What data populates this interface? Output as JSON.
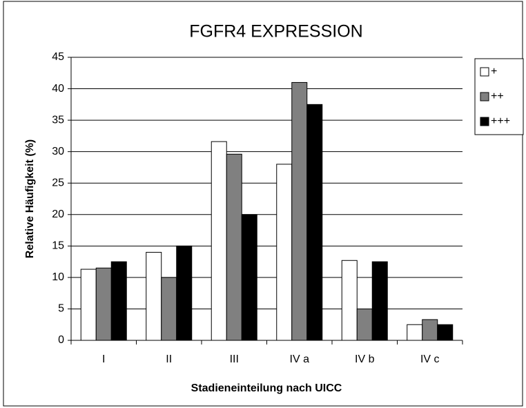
{
  "chart_data": {
    "type": "bar",
    "title": "FGFR4 EXPRESSION",
    "x_label": "Stadieneinteilung nach UICC",
    "y_label": "Relative Häufigkeit (%)",
    "categories": [
      "I",
      "II",
      "III",
      "IV a",
      "IV b",
      "IV c"
    ],
    "series": [
      {
        "name": "+",
        "color": "#ffffff",
        "values": [
          11.3,
          14,
          31.6,
          28,
          12.7,
          2.5
        ]
      },
      {
        "name": "++",
        "color": "#808080",
        "values": [
          11.5,
          10,
          29.6,
          41,
          5,
          3.3
        ]
      },
      {
        "name": "+++",
        "color": "#000000",
        "values": [
          12.5,
          15,
          20,
          37.5,
          12.5,
          2.5
        ]
      }
    ],
    "ylim": [
      0,
      45
    ],
    "yticks": [
      0,
      5,
      10,
      15,
      20,
      25,
      30,
      35,
      40,
      45
    ],
    "grid": true,
    "legend": "right"
  }
}
